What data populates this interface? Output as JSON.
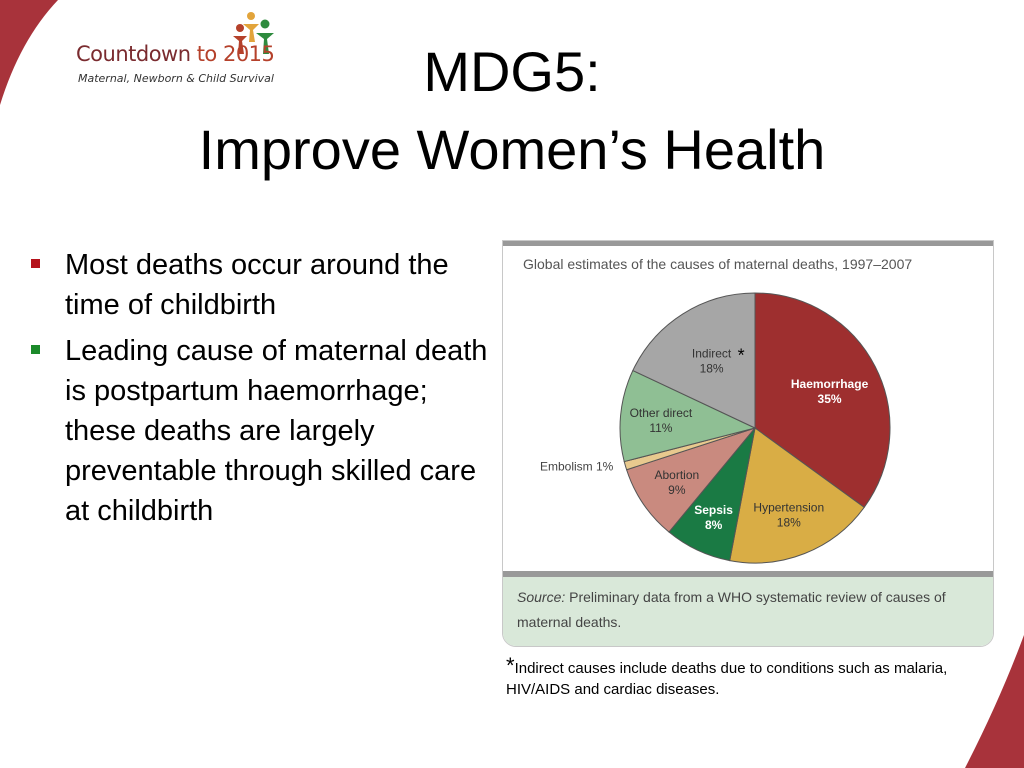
{
  "logo": {
    "title_main": "Countdown ",
    "title_to": "to 2015",
    "subtitle": "Maternal, Newborn & Child Survival"
  },
  "title": {
    "line1": "MDG5:",
    "line2": "Improve Women’s Health"
  },
  "bullets": [
    {
      "text": "Most deaths occur around the time of childbirth",
      "color": "#b5121b"
    },
    {
      "text": "Leading cause of maternal death is postpartum haemorrhage; these deaths are largely preventable through skilled care at childbirth",
      "color": "#1b8a2a"
    }
  ],
  "colors": {
    "brand_dark_red": "#7a2b2f",
    "swoosh": "#a8333b"
  },
  "chart_data": {
    "type": "pie",
    "title": "Global estimates of the causes of maternal deaths, 1997–2007",
    "start_angle_deg": 0,
    "slices": [
      {
        "label": "Haemorrhage",
        "value": 35,
        "value_label": "35%",
        "color": "#9e2f2f",
        "text_color": "#ffffff",
        "bold": true
      },
      {
        "label": "Hypertension",
        "value": 18,
        "value_label": "18%",
        "color": "#d9ad45",
        "text_color": "#333333",
        "bold": false
      },
      {
        "label": "Sepsis",
        "value": 8,
        "value_label": "8%",
        "color": "#1a7a44",
        "text_color": "#ffffff",
        "bold": true
      },
      {
        "label": "Abortion",
        "value": 9,
        "value_label": "9%",
        "color": "#c98a7f",
        "text_color": "#333333",
        "bold": false
      },
      {
        "label": "Embolism",
        "value": 1,
        "value_label": "1%",
        "color": "#e8c98e",
        "text_color": "#333333",
        "bold": false,
        "outside": true
      },
      {
        "label": "Other direct",
        "value": 11,
        "value_label": "11%",
        "color": "#8fbf94",
        "text_color": "#333333",
        "bold": false
      },
      {
        "label": "Indirect",
        "value": 18,
        "value_label": "18%",
        "color": "#a6a6a6",
        "text_color": "#333333",
        "bold": false,
        "marker": "*"
      }
    ]
  },
  "source": {
    "label": "Source:",
    "text": " Preliminary data from a WHO systematic review of causes of maternal deaths."
  },
  "footnote": {
    "star": "*",
    "text": "Indirect causes include deaths due to conditions such as malaria, HIV/AIDS and cardiac diseases."
  }
}
